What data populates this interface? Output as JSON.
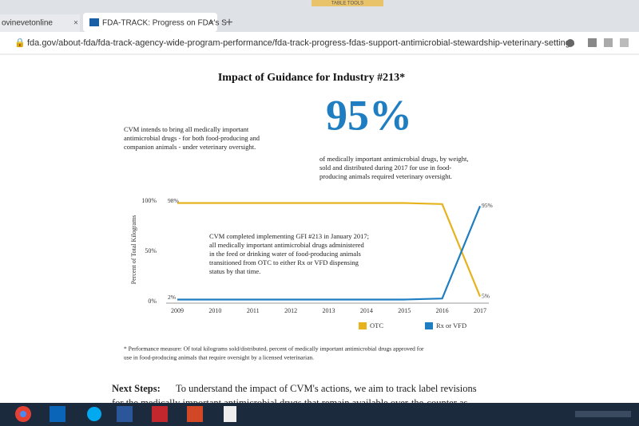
{
  "browser": {
    "ribbon": "TABLE TOOLS",
    "tabs": [
      "ovinevetonline",
      "FDA-TRACK: Progress on FDA's S"
    ],
    "url": "fda.gov/about-fda/fda-track-agency-wide-program-performance/fda-track-progress-fdas-support-antimicrobial-stewardship-veterinary-settings"
  },
  "page": {
    "title": "Impact of Guidance for Industry #213*",
    "intro": [
      "CVM intends to bring all medically important",
      "antimicrobial drugs - for both food-producing and",
      "companion animals - under veterinary oversight."
    ],
    "stat": "95%",
    "stat_text": [
      "of medically important antimicrobial drugs, by weight,",
      "sold and distributed during 2017 for use in food-",
      "producing animals required veterinary oversight."
    ],
    "footnote": [
      "* Performance measure: Of total kilograms sold/distributed, percent of medically important antimicrobial drugs approved for",
      "use in food-producing animals that require oversight by a licensed veterinarian."
    ],
    "next_steps_label": "Next Steps:",
    "next_steps": [
      "To understand the impact of CVM's actions, we aim to track label revisions",
      "for the medically important antimicrobial drugs that remain available over-the-counter as"
    ]
  },
  "chart": {
    "type": "line",
    "y_label": "Percent of Total Kilograms",
    "x": [
      2009,
      2010,
      2011,
      2012,
      2013,
      2014,
      2015,
      2016,
      2017
    ],
    "xlim": [
      2009,
      2017
    ],
    "ylim": [
      0,
      100
    ],
    "yticks": [
      {
        "value": 0,
        "label": "0%"
      },
      {
        "value": 50,
        "label": "50%"
      },
      {
        "value": 100,
        "label": "100%"
      }
    ],
    "annotation": [
      "CVM completed implementing GFI #213 in January 2017;",
      "all medically important antimicrobial drugs administered",
      "in the feed or drinking water of food-producing animals",
      "transitioned from OTC to either Rx or VFD dispensing",
      "status by that time."
    ],
    "series": [
      {
        "name": "OTC",
        "color": "#e6b31e",
        "values": [
          98,
          98,
          98,
          98,
          98,
          98,
          98,
          97,
          5
        ],
        "value_labels": [
          "98%",
          null,
          null,
          null,
          null,
          null,
          null,
          null,
          "5%"
        ]
      },
      {
        "name": "Rx or VFD",
        "color": "#1f7ec2",
        "values": [
          2,
          2,
          2,
          2,
          2,
          2,
          2,
          3,
          95
        ],
        "value_labels": [
          "2%",
          null,
          null,
          null,
          null,
          null,
          null,
          null,
          "95%"
        ]
      }
    ]
  }
}
